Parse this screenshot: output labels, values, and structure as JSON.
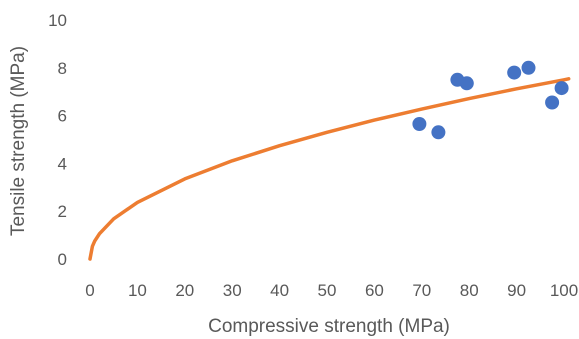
{
  "chart_data": {
    "type": "scatter",
    "title": "",
    "xlabel": "Compressive strength (MPa)",
    "ylabel": "Tensile strength (MPa)",
    "xlim": [
      0,
      100
    ],
    "ylim": [
      0,
      10
    ],
    "xticks": [
      "0",
      "10",
      "20",
      "30",
      "40",
      "50",
      "60",
      "70",
      "80",
      "90",
      "100"
    ],
    "yticks": [
      "0",
      "2",
      "4",
      "6",
      "8",
      "10"
    ],
    "grid": false,
    "legend": "none",
    "series": [
      {
        "kind": "scatter",
        "color": "#4472C4",
        "points": [
          {
            "x": 69.5,
            "y": 5.65
          },
          {
            "x": 73.5,
            "y": 5.3
          },
          {
            "x": 77.5,
            "y": 7.5
          },
          {
            "x": 79.5,
            "y": 7.35
          },
          {
            "x": 89.5,
            "y": 7.8
          },
          {
            "x": 92.5,
            "y": 8.0
          },
          {
            "x": 97.5,
            "y": 6.55
          },
          {
            "x": 99.5,
            "y": 7.15
          }
        ]
      },
      {
        "kind": "curve",
        "color": "#ED7D31",
        "points": [
          {
            "x": 0,
            "y": 0
          },
          {
            "x": 0.5,
            "y": 0.53
          },
          {
            "x": 1,
            "y": 0.75
          },
          {
            "x": 2,
            "y": 1.06
          },
          {
            "x": 5,
            "y": 1.68
          },
          {
            "x": 10,
            "y": 2.37
          },
          {
            "x": 20,
            "y": 3.35
          },
          {
            "x": 30,
            "y": 4.11
          },
          {
            "x": 40,
            "y": 4.74
          },
          {
            "x": 50,
            "y": 5.3
          },
          {
            "x": 60,
            "y": 5.81
          },
          {
            "x": 70,
            "y": 6.27
          },
          {
            "x": 80,
            "y": 6.71
          },
          {
            "x": 90,
            "y": 7.12
          },
          {
            "x": 100,
            "y": 7.5
          },
          {
            "x": 101,
            "y": 7.54
          }
        ]
      }
    ]
  }
}
